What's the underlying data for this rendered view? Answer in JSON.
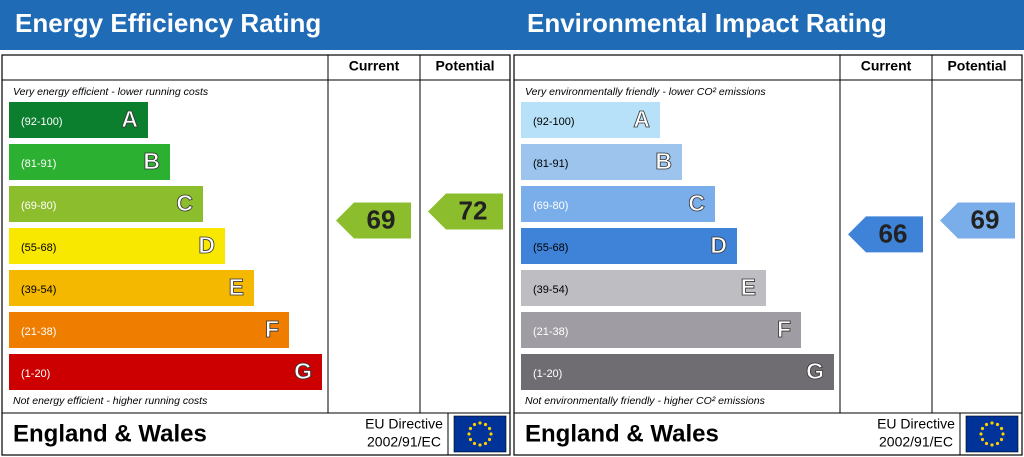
{
  "panels": [
    {
      "title": "Energy Efficiency Rating",
      "headers": [
        "Current",
        "Potential"
      ],
      "top_note": "Very energy efficient - lower running costs",
      "bottom_note": "Not energy efficient - higher running costs",
      "bands": [
        {
          "range": "(92-100)",
          "letter": "A",
          "color": "#0c7f2f",
          "label_color": "#ffffff"
        },
        {
          "range": "(81-91)",
          "letter": "B",
          "color": "#2cb031",
          "label_color": "#ffffff"
        },
        {
          "range": "(69-80)",
          "letter": "C",
          "color": "#8cbd2d",
          "label_color": "#ffffff"
        },
        {
          "range": "(55-68)",
          "letter": "D",
          "color": "#f8e800",
          "label_color": "#000000"
        },
        {
          "range": "(39-54)",
          "letter": "E",
          "color": "#f4b800",
          "label_color": "#000000"
        },
        {
          "range": "(21-38)",
          "letter": "F",
          "color": "#ef7d00",
          "label_color": "#ffffff"
        },
        {
          "range": "(1-20)",
          "letter": "G",
          "color": "#cc0000",
          "label_color": "#ffffff"
        }
      ],
      "current": 69,
      "potential": 72,
      "footer": "England & Wales",
      "directive": [
        "EU Directive",
        "2002/91/EC"
      ]
    },
    {
      "title": "Environmental Impact Rating",
      "headers": [
        "Current",
        "Potential"
      ],
      "top_note": "Very environmentally friendly - lower CO² emissions",
      "bottom_note": "Not environmentally friendly - higher CO² emissions",
      "bands": [
        {
          "range": "(92-100)",
          "letter": "A",
          "color": "#b7e1f8",
          "label_color": "#000000"
        },
        {
          "range": "(81-91)",
          "letter": "B",
          "color": "#9cc4ed",
          "label_color": "#000000"
        },
        {
          "range": "(69-80)",
          "letter": "C",
          "color": "#7aaeea",
          "label_color": "#ffffff"
        },
        {
          "range": "(55-68)",
          "letter": "D",
          "color": "#3f83d9",
          "label_color": "#000000"
        },
        {
          "range": "(39-54)",
          "letter": "E",
          "color": "#bdbdc2",
          "label_color": "#000000"
        },
        {
          "range": "(21-38)",
          "letter": "F",
          "color": "#a09ca3",
          "label_color": "#ffffff"
        },
        {
          "range": "(1-20)",
          "letter": "G",
          "color": "#706d72",
          "label_color": "#ffffff"
        }
      ],
      "current": 66,
      "potential": 69,
      "footer": "England & Wales",
      "directive": [
        "EU Directive",
        "2002/91/EC"
      ]
    }
  ]
}
